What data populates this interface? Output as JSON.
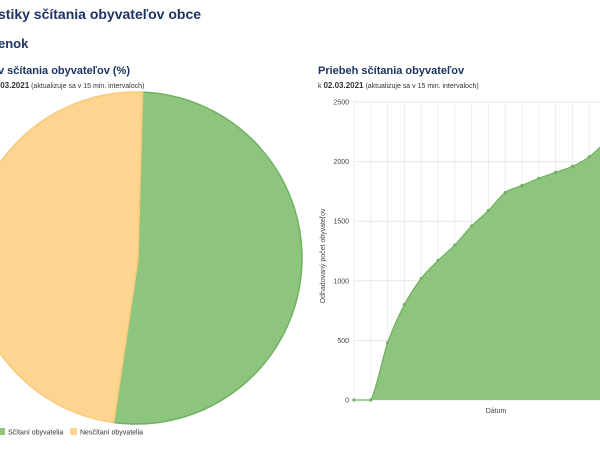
{
  "page": {
    "title": "stiky sčítania obyvateľov obce",
    "section": "enok"
  },
  "pie_card": {
    "title": "v sčítania obyvateľov (%)",
    "date": ".03.2021",
    "note": "(aktualizuje sa v 15 min. intervaloch)"
  },
  "line_card": {
    "title": "Priebeh sčítania obyvateľov",
    "date_prefix": "k",
    "date": "02.03.2021",
    "note": "(aktualizuje sa v 15 min. intervaloch)"
  },
  "colors": {
    "green_fill": "#8dc57f",
    "green_stroke": "#6fb160",
    "orange_fill": "#fdd591",
    "orange_stroke": "#f8c97a"
  },
  "chart_data": [
    {
      "type": "pie",
      "series": [
        {
          "name": "Sčítaní obyvatelia",
          "value": 51.5
        },
        {
          "name": "Nesčítaní obyvatelia",
          "value": 48.5
        }
      ],
      "legend": "bottom-left"
    },
    {
      "type": "area",
      "xlabel": "Dátum",
      "ylabel": "Odhadovaný počet obyvateľov",
      "ylim": [
        0,
        2500
      ],
      "yticks": [
        0,
        500,
        1000,
        1500,
        2000,
        2500
      ],
      "grid": true,
      "values": [
        0,
        0,
        480,
        800,
        1020,
        1170,
        1300,
        1460,
        1590,
        1740,
        1800,
        1860,
        1910,
        1960,
        2040,
        2170
      ]
    }
  ]
}
